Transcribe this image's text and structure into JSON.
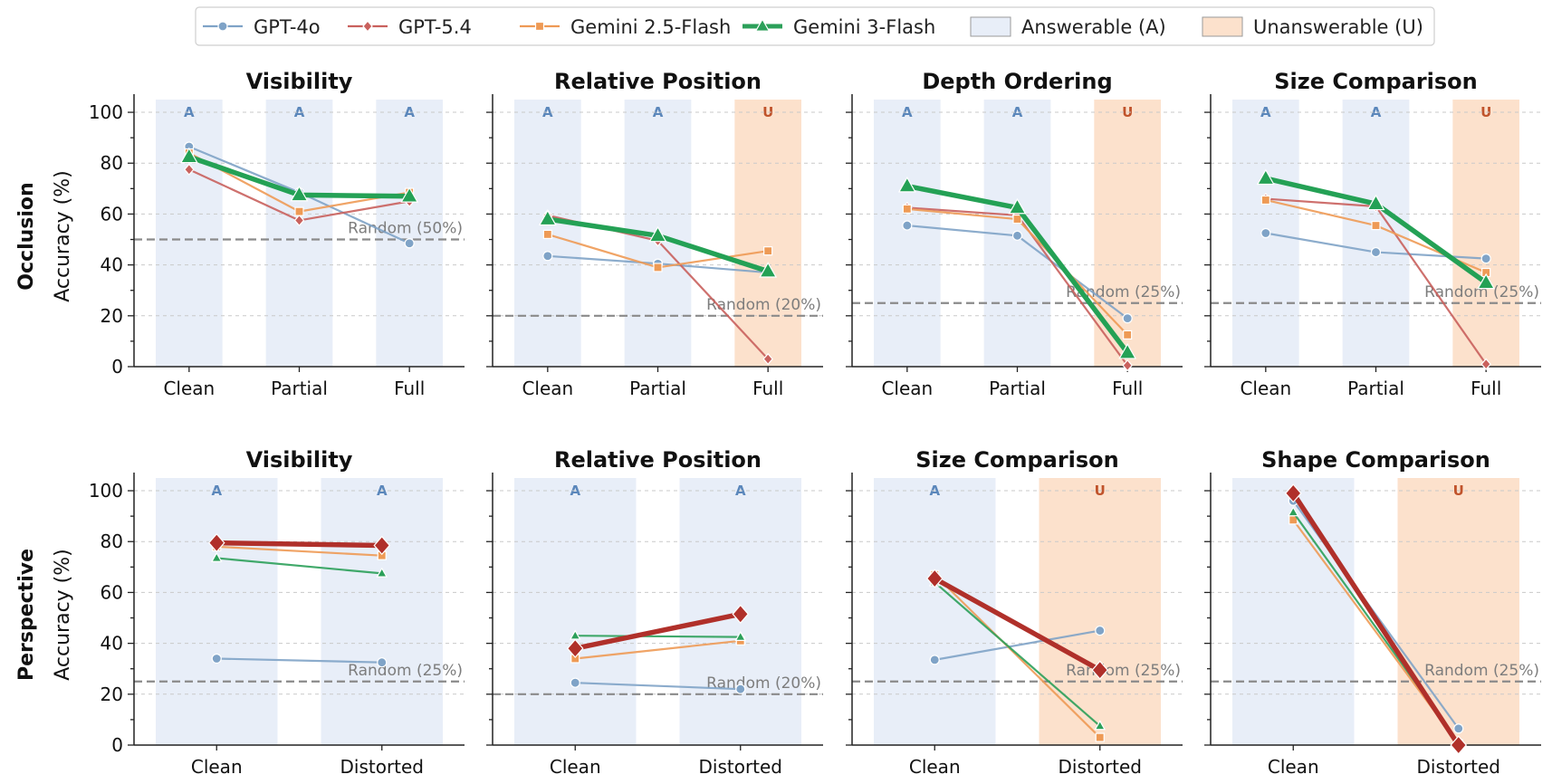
{
  "legend": [
    {
      "label": "GPT-4o",
      "color": "#7fa3c7",
      "marker": "circle",
      "kind": "line"
    },
    {
      "label": "GPT-5.4",
      "color": "#c9615d",
      "marker": "diamond",
      "kind": "line"
    },
    {
      "label": "Gemini 2.5-Flash",
      "color": "#ee9a55",
      "marker": "square",
      "kind": "line"
    },
    {
      "label": "Gemini 3-Flash",
      "color": "#2ca05a",
      "marker": "triangle",
      "kind": "line"
    },
    {
      "label": "Answerable (A)",
      "color": "#e8eef8",
      "kind": "patch"
    },
    {
      "label": "Unanswerable (U)",
      "color": "#fce1cc",
      "kind": "patch"
    }
  ],
  "colors": {
    "answerable_bg": "#e8eef8",
    "unanswerable_bg": "#fce1cc",
    "answerable_text": "#5b87bb",
    "unanswerable_text": "#c0532b",
    "highlight_gpt54": "#b0302a",
    "highlight_gemini3": "#24a155"
  },
  "row_labels": [
    "Occlusion",
    "Perspective"
  ],
  "y_axis_label": "Accuracy (%)",
  "y_ticks": [
    "0",
    "20",
    "40",
    "60",
    "80",
    "100"
  ],
  "chart_data": [
    {
      "type": "line",
      "title": "Visibility",
      "row": "Occlusion",
      "ylim": [
        0,
        105
      ],
      "categories": [
        "Clean",
        "Partial",
        "Full"
      ],
      "conditions": [
        "A",
        "A",
        "A"
      ],
      "random": {
        "value": 50,
        "label": "Random (50%)"
      },
      "highlight": "Gemini 3-Flash",
      "series": [
        {
          "name": "GPT-4o",
          "values": [
            86.5,
            68.5,
            48.5
          ]
        },
        {
          "name": "GPT-5.4",
          "values": [
            77.5,
            57.5,
            65
          ]
        },
        {
          "name": "Gemini 2.5-Flash",
          "values": [
            84,
            61,
            68.5
          ]
        },
        {
          "name": "Gemini 3-Flash",
          "values": [
            82.5,
            67.5,
            67
          ]
        }
      ]
    },
    {
      "type": "line",
      "title": "Relative Position",
      "row": "Occlusion",
      "ylim": [
        0,
        105
      ],
      "categories": [
        "Clean",
        "Partial",
        "Full"
      ],
      "conditions": [
        "A",
        "A",
        "U"
      ],
      "random": {
        "value": 20,
        "label": "Random (20%)"
      },
      "highlight": "Gemini 3-Flash",
      "series": [
        {
          "name": "GPT-4o",
          "values": [
            43.5,
            40.5,
            37
          ]
        },
        {
          "name": "GPT-5.4",
          "values": [
            59.5,
            49.5,
            3
          ]
        },
        {
          "name": "Gemini 2.5-Flash",
          "values": [
            52,
            39,
            45.5
          ]
        },
        {
          "name": "Gemini 3-Flash",
          "values": [
            58,
            51.5,
            37.5
          ]
        }
      ]
    },
    {
      "type": "line",
      "title": "Depth Ordering",
      "row": "Occlusion",
      "ylim": [
        0,
        105
      ],
      "categories": [
        "Clean",
        "Partial",
        "Full"
      ],
      "conditions": [
        "A",
        "A",
        "U"
      ],
      "random": {
        "value": 25,
        "label": "Random (25%)"
      },
      "highlight": "Gemini 3-Flash",
      "series": [
        {
          "name": "GPT-4o",
          "values": [
            55.5,
            51.5,
            19
          ]
        },
        {
          "name": "GPT-5.4",
          "values": [
            62.5,
            59.5,
            0.5
          ]
        },
        {
          "name": "Gemini 2.5-Flash",
          "values": [
            62,
            58,
            12.5
          ]
        },
        {
          "name": "Gemini 3-Flash",
          "values": [
            71,
            62.5,
            5.5
          ]
        }
      ]
    },
    {
      "type": "line",
      "title": "Size Comparison",
      "row": "Occlusion",
      "ylim": [
        0,
        105
      ],
      "categories": [
        "Clean",
        "Partial",
        "Full"
      ],
      "conditions": [
        "A",
        "A",
        "U"
      ],
      "random": {
        "value": 25,
        "label": "Random (25%)"
      },
      "highlight": "Gemini 3-Flash",
      "series": [
        {
          "name": "GPT-4o",
          "values": [
            52.5,
            45,
            42.5
          ]
        },
        {
          "name": "GPT-5.4",
          "values": [
            66,
            63,
            1
          ]
        },
        {
          "name": "Gemini 2.5-Flash",
          "values": [
            65.5,
            55.5,
            37
          ]
        },
        {
          "name": "Gemini 3-Flash",
          "values": [
            74,
            64,
            33
          ]
        }
      ]
    },
    {
      "type": "line",
      "title": "Visibility",
      "row": "Perspective",
      "ylim": [
        0,
        105
      ],
      "categories": [
        "Clean",
        "Distorted"
      ],
      "conditions": [
        "A",
        "A"
      ],
      "random": {
        "value": 25,
        "label": "Random (25%)"
      },
      "highlight": "GPT-5.4",
      "series": [
        {
          "name": "GPT-4o",
          "values": [
            34,
            32.5
          ]
        },
        {
          "name": "GPT-5.4",
          "values": [
            79.5,
            78.5
          ]
        },
        {
          "name": "Gemini 2.5-Flash",
          "values": [
            78,
            74.5
          ]
        },
        {
          "name": "Gemini 3-Flash",
          "values": [
            73.5,
            67.5
          ]
        }
      ]
    },
    {
      "type": "line",
      "title": "Relative Position",
      "row": "Perspective",
      "ylim": [
        0,
        105
      ],
      "categories": [
        "Clean",
        "Distorted"
      ],
      "conditions": [
        "A",
        "A"
      ],
      "random": {
        "value": 20,
        "label": "Random (20%)"
      },
      "highlight": "GPT-5.4",
      "series": [
        {
          "name": "GPT-4o",
          "values": [
            24.5,
            22
          ]
        },
        {
          "name": "GPT-5.4",
          "values": [
            38,
            51.5
          ]
        },
        {
          "name": "Gemini 2.5-Flash",
          "values": [
            34,
            41
          ]
        },
        {
          "name": "Gemini 3-Flash",
          "values": [
            43,
            42.5
          ]
        }
      ]
    },
    {
      "type": "line",
      "title": "Size Comparison",
      "row": "Perspective",
      "ylim": [
        0,
        105
      ],
      "categories": [
        "Clean",
        "Distorted"
      ],
      "conditions": [
        "A",
        "U"
      ],
      "random": {
        "value": 25,
        "label": "Random (25%)"
      },
      "highlight": "GPT-5.4",
      "series": [
        {
          "name": "GPT-4o",
          "values": [
            33.5,
            45
          ]
        },
        {
          "name": "GPT-5.4",
          "values": [
            65.5,
            29.5
          ]
        },
        {
          "name": "Gemini 2.5-Flash",
          "values": [
            67,
            3
          ]
        },
        {
          "name": "Gemini 3-Flash",
          "values": [
            64,
            7.5
          ]
        }
      ]
    },
    {
      "type": "line",
      "title": "Shape Comparison",
      "row": "Perspective",
      "ylim": [
        0,
        105
      ],
      "categories": [
        "Clean",
        "Distorted"
      ],
      "conditions": [
        "A",
        "U"
      ],
      "random": {
        "value": 25,
        "label": "Random (25%)"
      },
      "highlight": "GPT-5.4",
      "series": [
        {
          "name": "GPT-4o",
          "values": [
            96,
            6.5
          ]
        },
        {
          "name": "GPT-5.4",
          "values": [
            99,
            0
          ]
        },
        {
          "name": "Gemini 2.5-Flash",
          "values": [
            88.5,
            0.5
          ]
        },
        {
          "name": "Gemini 3-Flash",
          "values": [
            91.5,
            1
          ]
        }
      ]
    }
  ]
}
